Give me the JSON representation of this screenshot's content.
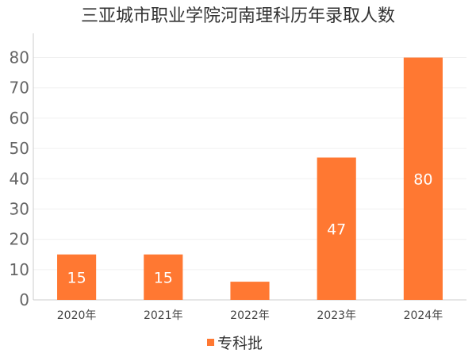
{
  "chart_data": {
    "type": "bar",
    "title": "三亚城市职业学院河南理科历年录取人数",
    "categories": [
      "2020年",
      "2021年",
      "2022年",
      "2023年",
      "2024年"
    ],
    "series": [
      {
        "name": "专科批",
        "values": [
          15,
          15,
          6,
          47,
          80
        ],
        "data_labels": [
          "15",
          "15",
          "",
          "47",
          "80"
        ]
      }
    ],
    "ylim": [
      0,
      88
    ],
    "yticks": [
      0,
      10,
      20,
      30,
      40,
      50,
      60,
      70,
      80
    ],
    "grid": true,
    "legend_position": "bottom-center",
    "colors": {
      "bar": "#ff7832",
      "axis": "#cccccc",
      "grid": "#f0f0f0"
    }
  }
}
